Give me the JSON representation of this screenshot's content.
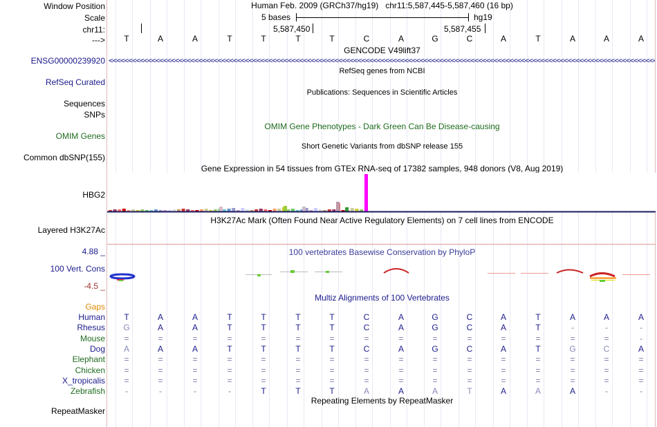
{
  "colors": {
    "label_navy": "#1a1a8c",
    "label_green": "#1f6b1f",
    "label_orange": "#e08a00",
    "omim_green": "#1d6b1d",
    "phylop_blue": "#3b3b9c",
    "phylop_red": "#993333",
    "gtex_magenta": "#ff00ff"
  },
  "header": {
    "window_position_label": "Window Position",
    "window_position_value": "Human Feb. 2009 (GRCh37/hg19)   chr11:5,587,445-5,587,460 (16 bp)",
    "scale_label": "Scale",
    "scale_bar_text": "5 bases",
    "scale_assembly": "hg19",
    "chrom_label": "chr11:",
    "coord_1": "5,587,450",
    "coord_2": "5,587,455",
    "strand_label": "--->"
  },
  "reference_bases": [
    "T",
    "A",
    "A",
    "T",
    "T",
    "T",
    "T",
    "C",
    "A",
    "G",
    "C",
    "A",
    "T",
    "A",
    "A",
    "A"
  ],
  "tracks": {
    "gencode_title": "GENCODE V49lift37",
    "gencode_gene": "ENSG00000239920",
    "refseq_title": "RefSeq genes from NCBI",
    "refseq_label": "RefSeq Curated",
    "pubs_title": "Publications: Sequences in Scientific Articles",
    "sequences_label": "Sequences",
    "snps_label": "SNPs",
    "omim_label": "OMIM Genes",
    "omim_title": "OMIM Gene Phenotypes - Dark Green Can Be Disease-causing",
    "dbsnp_title": "Short Genetic Variants from dbSNP release 155",
    "dbsnp_label": "Common dbSNP(155)",
    "gtex_title": "Gene Expression in 54 tissues from GTEx RNA-seq of 17382 samples, 948 donors (V8, Aug 2019)",
    "gtex_label": "HBG2",
    "h3k27ac_title": "H3K27Ac Mark (Often Found Near Active Regulatory Elements) on 7 cell lines from ENCODE",
    "h3k27ac_label": "Layered H3K27Ac",
    "phylop_max": "4.88 _",
    "phylop_title": "100 vertebrates Basewise Conservation by PhyloP",
    "phylop_label": "100 Vert. Cons",
    "phylop_min": "-4.5 _",
    "gaps_label": "Gaps",
    "multiz_title": "Multiz Alignments of 100 Vertebrates",
    "repeat_title": "Repeating Elements by RepeatMasker",
    "repeat_label": "RepeatMasker"
  },
  "alignment": [
    {
      "species": "Human",
      "bases": [
        "T",
        "A",
        "A",
        "T",
        "T",
        "T",
        "T",
        "C",
        "A",
        "G",
        "C",
        "A",
        "T",
        "A",
        "A",
        "A"
      ]
    },
    {
      "species": "Rhesus",
      "bases": [
        "G",
        "A",
        "A",
        "T",
        "T",
        "T",
        "T",
        "C",
        "A",
        "G",
        "C",
        "A",
        "T",
        "-",
        "-",
        "-"
      ]
    },
    {
      "species": "Mouse",
      "bases": [
        "=",
        "=",
        "=",
        "=",
        "=",
        "=",
        "=",
        "=",
        "=",
        "=",
        "=",
        "=",
        "=",
        "=",
        "=",
        "-"
      ]
    },
    {
      "species": "Dog",
      "bases": [
        "A",
        "A",
        "A",
        "T",
        "T",
        "T",
        "T",
        "C",
        "A",
        "G",
        "C",
        "A",
        "T",
        "G",
        "C",
        "A"
      ]
    },
    {
      "species": "Elephant",
      "bases": [
        "=",
        "=",
        "=",
        "=",
        "=",
        "=",
        "=",
        "=",
        "=",
        "=",
        "=",
        "=",
        "=",
        "=",
        "=",
        "="
      ]
    },
    {
      "species": "Chicken",
      "bases": [
        "=",
        "=",
        "=",
        "=",
        "=",
        "=",
        "=",
        "=",
        "=",
        "=",
        "=",
        "=",
        "=",
        "=",
        "=",
        "="
      ]
    },
    {
      "species": "X_tropicalis",
      "bases": [
        "=",
        "=",
        "=",
        "=",
        "=",
        "=",
        "=",
        "=",
        "=",
        "=",
        "=",
        "=",
        "=",
        "=",
        "=",
        "="
      ]
    },
    {
      "species": "Zebrafish",
      "bases": [
        "-",
        "-",
        "-",
        "-",
        "T",
        "T",
        "T",
        "A",
        "A",
        "A",
        "T",
        "A",
        "A",
        "A",
        "-",
        "-"
      ]
    }
  ]
}
